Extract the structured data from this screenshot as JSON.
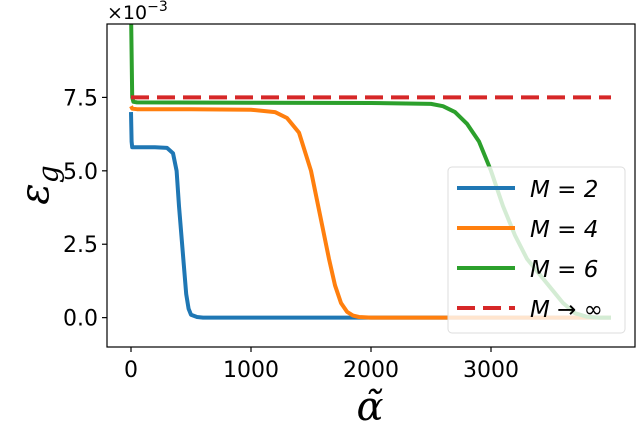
{
  "chart_data": {
    "type": "line",
    "xlabel": "α̃",
    "ylabel": "ε",
    "ylabel_sub": "g",
    "y_offset_text": "×10",
    "y_offset_exp": "−3",
    "xlim": [
      -200,
      4200
    ],
    "ylim": [
      -1.0,
      10.0
    ],
    "y_scale_factor": 0.001,
    "grid": false,
    "legend_placement": "lower-right",
    "xticks": [
      0,
      1000,
      2000,
      3000
    ],
    "xtick_labels": [
      "0",
      "1000",
      "2000",
      "3000"
    ],
    "yticks": [
      0.0,
      2.5,
      5.0,
      7.5
    ],
    "ytick_labels": [
      "0.0",
      "2.5",
      "5.0",
      "7.5"
    ],
    "series": [
      {
        "name": "M = 2",
        "color": "#1f77b4",
        "style": "solid",
        "x": [
          0,
          5,
          10,
          50,
          200,
          300,
          350,
          380,
          400,
          420,
          440,
          460,
          480,
          500,
          550,
          600,
          1000,
          2000,
          3000,
          4000
        ],
        "y": [
          7.0,
          6.0,
          5.8,
          5.8,
          5.8,
          5.78,
          5.6,
          5.0,
          3.8,
          2.8,
          1.8,
          0.8,
          0.3,
          0.1,
          0.02,
          0,
          0,
          0,
          0,
          0
        ]
      },
      {
        "name": "M = 4",
        "color": "#ff7f0e",
        "style": "solid",
        "x": [
          0,
          10,
          50,
          500,
          1000,
          1200,
          1300,
          1400,
          1500,
          1550,
          1600,
          1650,
          1700,
          1750,
          1800,
          1850,
          1900,
          2000,
          3000,
          4000
        ],
        "y": [
          7.2,
          7.12,
          7.1,
          7.1,
          7.08,
          7.0,
          6.8,
          6.3,
          5.0,
          4.0,
          3.0,
          2.0,
          1.1,
          0.5,
          0.2,
          0.07,
          0.02,
          0,
          0,
          0
        ]
      },
      {
        "name": "M = 6",
        "color": "#2ca02c",
        "style": "solid",
        "x": [
          0,
          10,
          20,
          50,
          1000,
          2000,
          2500,
          2600,
          2700,
          2800,
          2900,
          3000,
          3100,
          3200,
          3300,
          3400,
          3500,
          3600,
          3700,
          3800,
          3900,
          4000
        ],
        "y": [
          10.5,
          7.5,
          7.35,
          7.33,
          7.32,
          7.31,
          7.28,
          7.2,
          7.0,
          6.6,
          6.0,
          5.0,
          3.8,
          2.8,
          2.0,
          1.5,
          1.0,
          0.5,
          0.15,
          0.03,
          0,
          0
        ]
      },
      {
        "name": "M → ∞",
        "color": "#d62728",
        "style": "dashed",
        "x": [
          0,
          4000
        ],
        "y": [
          7.5,
          7.5
        ]
      }
    ]
  }
}
